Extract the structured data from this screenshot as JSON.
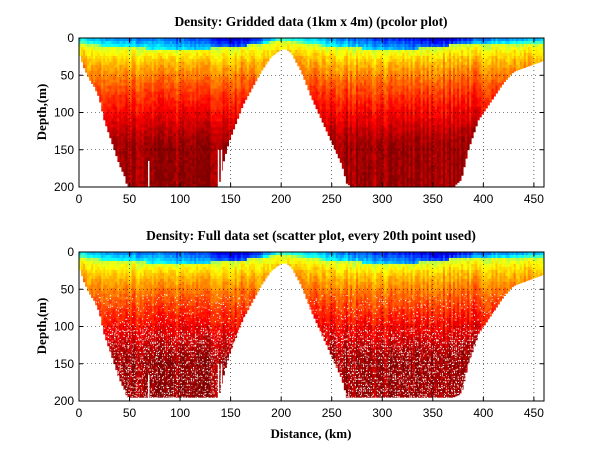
{
  "chart_data": [
    {
      "type": "heatmap",
      "title": "Density: Gridded data (1km x 4m) (pcolor plot)",
      "xlabel": "",
      "ylabel": "Depth,(m)",
      "xlim": [
        0,
        460
      ],
      "ylim": [
        200,
        0
      ],
      "y_reversed": true,
      "grid": true,
      "colormap": "jet",
      "xticks": [
        0,
        50,
        100,
        150,
        200,
        250,
        300,
        350,
        400,
        450
      ],
      "yticks": [
        0,
        50,
        100,
        150,
        200
      ],
      "render": "pcolor",
      "bottom_depth_profile": {
        "distance_km": [
          0,
          5,
          10,
          15,
          20,
          25,
          30,
          35,
          40,
          45,
          48,
          52,
          60,
          80,
          100,
          120,
          130,
          138,
          142,
          148,
          155,
          162,
          170,
          180,
          190,
          200,
          205,
          210,
          220,
          230,
          240,
          250,
          260,
          265,
          270,
          290,
          320,
          350,
          362,
          370,
          378,
          385,
          395,
          410,
          420,
          430,
          440,
          450,
          460
        ],
        "max_depth_m": [
          20,
          40,
          55,
          65,
          80,
          110,
          130,
          150,
          170,
          185,
          200,
          200,
          200,
          200,
          200,
          200,
          200,
          200,
          170,
          140,
          115,
          90,
          70,
          45,
          25,
          15,
          15,
          20,
          45,
          80,
          110,
          140,
          170,
          195,
          200,
          200,
          200,
          200,
          200,
          200,
          190,
          150,
          110,
          80,
          60,
          45,
          40,
          35,
          30
        ]
      },
      "surface_layer": {
        "distance_km": [
          0,
          40,
          80,
          120,
          150,
          165,
          200,
          240,
          280,
          320,
          350,
          365,
          400,
          460
        ],
        "density_at_surface": [
          0.6,
          0.45,
          0.4,
          0.3,
          0.15,
          0.1,
          0.65,
          0.5,
          0.35,
          0.25,
          0.15,
          0.1,
          0.4,
          0.55
        ],
        "cool_layer_depth_m": [
          8,
          12,
          15,
          15,
          12,
          10,
          4,
          10,
          14,
          15,
          13,
          10,
          8,
          6
        ]
      },
      "colorscale_meaning": "blue = low density (surface), red = high density (depth)"
    },
    {
      "type": "scatter",
      "title": "Density: Full data set (scatter plot, every 20th point used)",
      "xlabel": "Distance, (km)",
      "ylabel": "Depth,(m)",
      "xlim": [
        0,
        460
      ],
      "ylim": [
        200,
        0
      ],
      "y_reversed": true,
      "grid": true,
      "colormap": "jet",
      "xticks": [
        0,
        50,
        100,
        150,
        200,
        250,
        300,
        350,
        400,
        450
      ],
      "yticks": [
        0,
        50,
        100,
        150,
        200
      ],
      "render": "scatter-stipple",
      "bottom_depth_profile": {
        "distance_km": [
          0,
          5,
          10,
          15,
          20,
          25,
          30,
          35,
          40,
          45,
          48,
          52,
          60,
          80,
          100,
          120,
          130,
          138,
          142,
          148,
          155,
          162,
          170,
          180,
          190,
          200,
          205,
          210,
          220,
          230,
          240,
          250,
          260,
          265,
          270,
          290,
          320,
          350,
          362,
          370,
          378,
          385,
          395,
          410,
          420,
          430,
          440,
          450,
          460
        ],
        "max_depth_m": [
          20,
          40,
          55,
          65,
          80,
          110,
          130,
          150,
          170,
          185,
          195,
          195,
          195,
          195,
          195,
          195,
          195,
          195,
          170,
          140,
          115,
          90,
          70,
          45,
          25,
          15,
          15,
          20,
          45,
          80,
          110,
          140,
          170,
          195,
          195,
          195,
          195,
          195,
          195,
          195,
          190,
          150,
          110,
          80,
          60,
          45,
          40,
          35,
          30
        ]
      },
      "surface_layer": {
        "distance_km": [
          0,
          40,
          80,
          120,
          150,
          165,
          200,
          240,
          280,
          320,
          350,
          365,
          400,
          460
        ],
        "density_at_surface": [
          0.6,
          0.45,
          0.4,
          0.3,
          0.15,
          0.1,
          0.65,
          0.5,
          0.35,
          0.25,
          0.15,
          0.1,
          0.4,
          0.55
        ],
        "cool_layer_depth_m": [
          8,
          12,
          15,
          15,
          12,
          10,
          4,
          10,
          14,
          15,
          13,
          10,
          8,
          6
        ]
      },
      "colorscale_meaning": "blue = low density (surface), red = high density (depth)"
    }
  ]
}
